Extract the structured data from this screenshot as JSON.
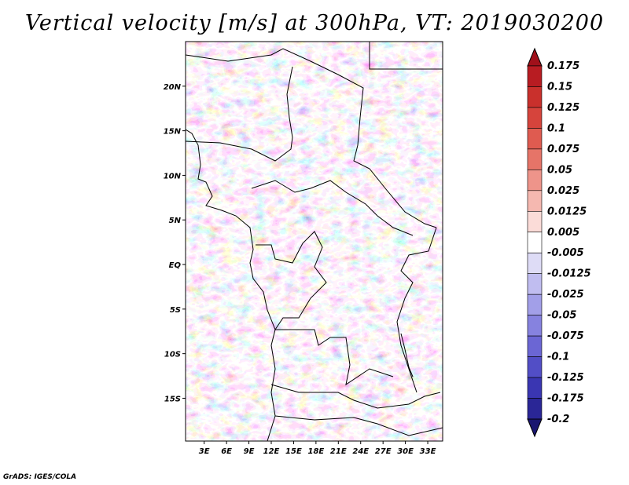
{
  "title": "Vertical velocity [m/s] at 300hPa, VT: 2019030200",
  "footer": "GrADS: IGES/COLA",
  "map": {
    "lon_labels": [
      "3E",
      "6E",
      "9E",
      "12E",
      "15E",
      "18E",
      "21E",
      "24E",
      "27E",
      "30E",
      "33E"
    ],
    "lat_labels": [
      "20N",
      "15N",
      "10N",
      "5N",
      "EQ",
      "5S",
      "10S",
      "15S"
    ],
    "lon_values": [
      3,
      6,
      9,
      12,
      15,
      18,
      21,
      24,
      27,
      30,
      33
    ],
    "lat_values": [
      20,
      15,
      10,
      5,
      0,
      -5,
      -10,
      -15
    ],
    "lon_range": [
      0.5,
      35
    ],
    "lat_range": [
      -19.8,
      25
    ]
  },
  "colorbar": {
    "levels": [
      "0.175",
      "0.15",
      "0.125",
      "0.1",
      "0.075",
      "0.05",
      "0.025",
      "0.0125",
      "0.005",
      "-0.005",
      "-0.0125",
      "-0.025",
      "-0.05",
      "-0.075",
      "-0.1",
      "-0.125",
      "-0.175",
      "-0.2"
    ],
    "colors": [
      "#a0101a",
      "#b81c22",
      "#c9302c",
      "#d6443c",
      "#df5b50",
      "#e67468",
      "#ee948a",
      "#f5b8b0",
      "#fbdcd8",
      "#ffffff",
      "#dedcf6",
      "#c0bdf0",
      "#a29fe8",
      "#8682df",
      "#6b66d4",
      "#524ec6",
      "#3a36b2",
      "#2a2696",
      "#1a1670"
    ]
  }
}
